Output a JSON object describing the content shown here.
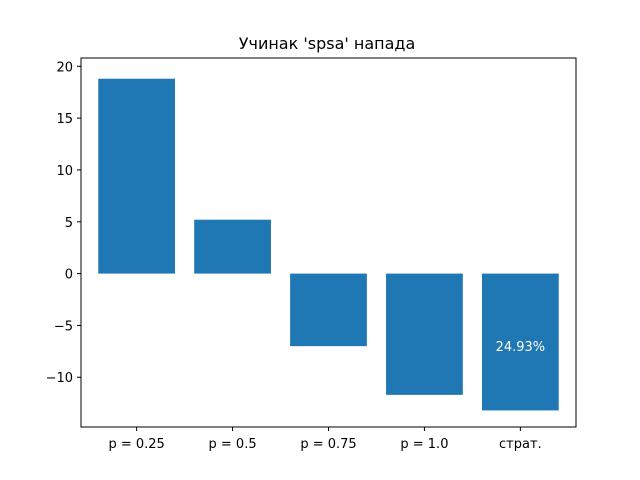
{
  "chart_data": {
    "type": "bar",
    "title": "Учинак 'spsa' напада",
    "xlabel": "",
    "ylabel": "",
    "categories": [
      "p = 0.25",
      "p = 0.5",
      "p = 0.75",
      "p = 1.0",
      "страт."
    ],
    "values": [
      18.8,
      5.2,
      -7.0,
      -11.7,
      -13.2
    ],
    "ylim": [
      -14.8,
      20.8
    ],
    "yticks": [
      20,
      15,
      10,
      5,
      0,
      -5,
      -10
    ],
    "ytick_labels": [
      "20",
      "15",
      "10",
      "5",
      "0",
      "−5",
      "−10"
    ],
    "bar_annotations": [
      {
        "category_index": 4,
        "y": -7.0,
        "text": "24.93%"
      }
    ],
    "bar_color": "#1f77b4",
    "grid": false,
    "legend": "none"
  }
}
